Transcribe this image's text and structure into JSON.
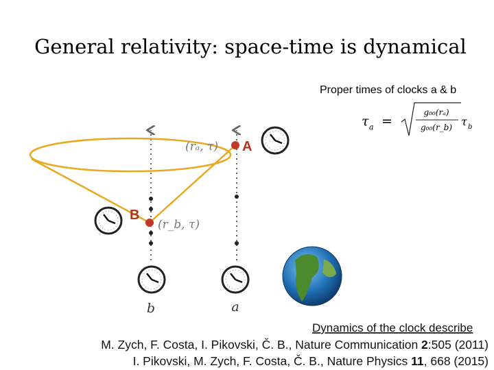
{
  "slide": {
    "title": "General relativity: space-time is dynamical",
    "subtitle": "Proper times of clocks a & b",
    "formula": {
      "lhs": "τ",
      "lhs_sub": "a",
      "equals": "=",
      "num": "g₀₀(rₐ)",
      "den": "g₀₀(r_b)",
      "rhs": "τ",
      "rhs_sub": "b"
    },
    "diagram": {
      "point_a": "A",
      "point_b": "B",
      "coord_a": "(rₐ, τ)",
      "coord_b": "(r_b, τ)",
      "worldline_b": "b",
      "worldline_a": "a"
    },
    "link": "Dynamics of the clock describe",
    "citations": [
      [
        "M. Zych, F. Costa, I. Pikovski, Č. B., Nature Communication ",
        "2",
        ":505 (2011)"
      ],
      [
        "I. Pikovski, M. Zych, F. Costa, Č. B., Nature Physics ",
        "11",
        ", 668 (2015)"
      ]
    ]
  }
}
